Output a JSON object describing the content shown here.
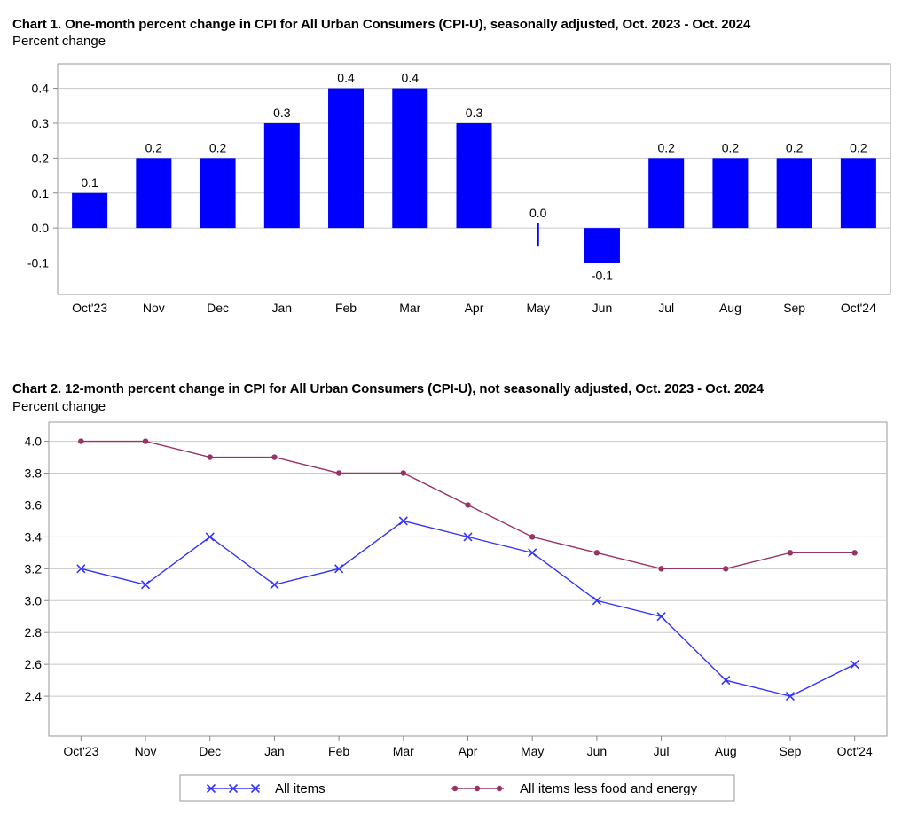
{
  "chart_data": [
    {
      "type": "bar",
      "title": "Chart 1. One-month percent change in CPI for All Urban Consumers (CPI-U), seasonally adjusted, Oct. 2023 - Oct. 2024",
      "ylabel": "Percent change",
      "xlabel": "",
      "categories": [
        "Oct'23",
        "Nov",
        "Dec",
        "Jan",
        "Feb",
        "Mar",
        "Apr",
        "May",
        "Jun",
        "Jul",
        "Aug",
        "Sep",
        "Oct'24"
      ],
      "values": [
        0.1,
        0.2,
        0.2,
        0.3,
        0.4,
        0.4,
        0.3,
        0.0,
        -0.1,
        0.2,
        0.2,
        0.2,
        0.2
      ],
      "data_labels": [
        "0.1",
        "0.2",
        "0.2",
        "0.3",
        "0.4",
        "0.4",
        "0.3",
        "0.0",
        "-0.1",
        "0.2",
        "0.2",
        "0.2",
        "0.2"
      ],
      "yticks": [
        "-0.1",
        "0.0",
        "0.1",
        "0.2",
        "0.3",
        "0.4"
      ],
      "ylim": [
        -0.19,
        0.47
      ],
      "grid": true,
      "color": "#0000ff"
    },
    {
      "type": "line",
      "title": "Chart 2. 12-month percent change in CPI for All Urban Consumers (CPI-U), not seasonally adjusted, Oct. 2023 - Oct. 2024",
      "ylabel": "Percent change",
      "xlabel": "",
      "categories": [
        "Oct'23",
        "Nov",
        "Dec",
        "Jan",
        "Feb",
        "Mar",
        "Apr",
        "May",
        "Jun",
        "Jul",
        "Aug",
        "Sep",
        "Oct'24"
      ],
      "series": [
        {
          "name": "All items",
          "values": [
            3.2,
            3.1,
            3.4,
            3.1,
            3.2,
            3.5,
            3.4,
            3.3,
            3.0,
            2.9,
            2.5,
            2.4,
            2.6
          ],
          "color": "#3333ff",
          "marker": "x"
        },
        {
          "name": "All items less food and energy",
          "values": [
            4.0,
            4.0,
            3.9,
            3.9,
            3.8,
            3.8,
            3.6,
            3.4,
            3.3,
            3.2,
            3.2,
            3.3,
            3.3
          ],
          "color": "#993366",
          "marker": "circle"
        }
      ],
      "yticks": [
        "2.4",
        "2.6",
        "2.8",
        "3.0",
        "3.2",
        "3.4",
        "3.6",
        "3.8",
        "4.0"
      ],
      "ylim": [
        2.15,
        4.12
      ],
      "grid": true,
      "legend": "bottom"
    }
  ]
}
